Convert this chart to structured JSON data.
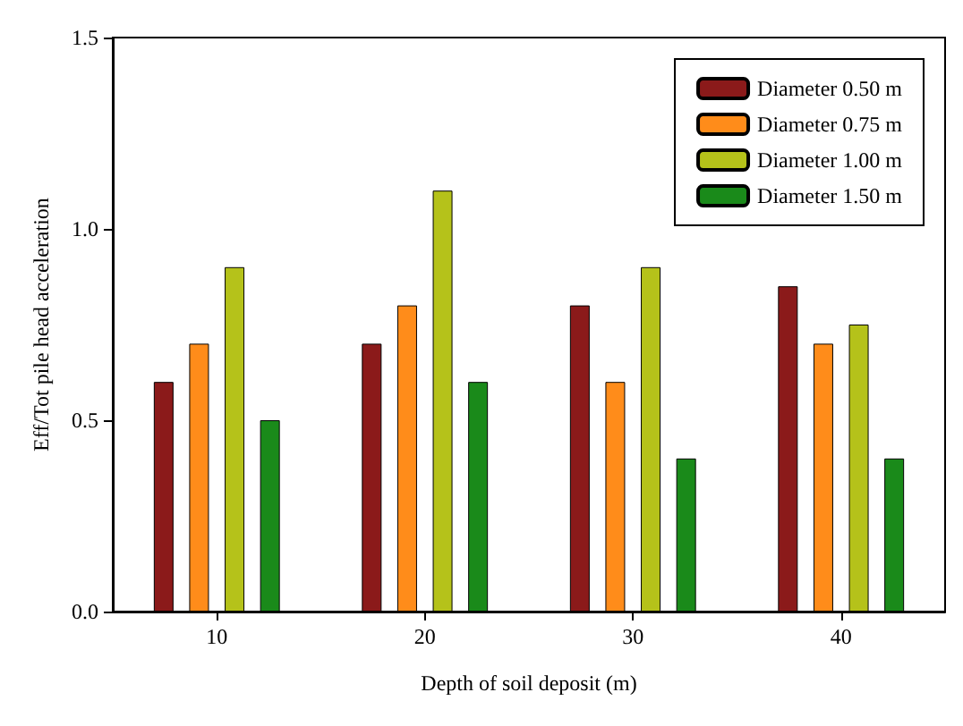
{
  "chart_data": {
    "type": "bar",
    "xlabel": "Depth of soil deposit (m)",
    "ylabel": "Eff/Tot pile head acceleration",
    "categories": [
      "10",
      "20",
      "30",
      "40"
    ],
    "series": [
      {
        "name": "Diameter 0.50 m",
        "color": "#8b1a1a",
        "values": [
          0.6,
          0.7,
          0.8,
          0.85
        ]
      },
      {
        "name": "Diameter 0.75 m",
        "color": "#ff8c1a",
        "values": [
          0.7,
          0.8,
          0.6,
          0.7
        ]
      },
      {
        "name": "Diameter 1.00 m",
        "color": "#b5c21a",
        "values": [
          0.9,
          1.1,
          0.9,
          0.75
        ]
      },
      {
        "name": "Diameter 1.50 m",
        "color": "#1a8a1a",
        "values": [
          0.5,
          0.6,
          0.4,
          0.4
        ]
      }
    ],
    "ylim": [
      0,
      1.5
    ],
    "yticks": [
      {
        "value": 0,
        "label": "0.0"
      },
      {
        "value": 0.5,
        "label": "0.5"
      },
      {
        "value": 1,
        "label": "1.0"
      },
      {
        "value": 1.5,
        "label": "1.5"
      }
    ],
    "legend": "top right",
    "grid": false
  }
}
